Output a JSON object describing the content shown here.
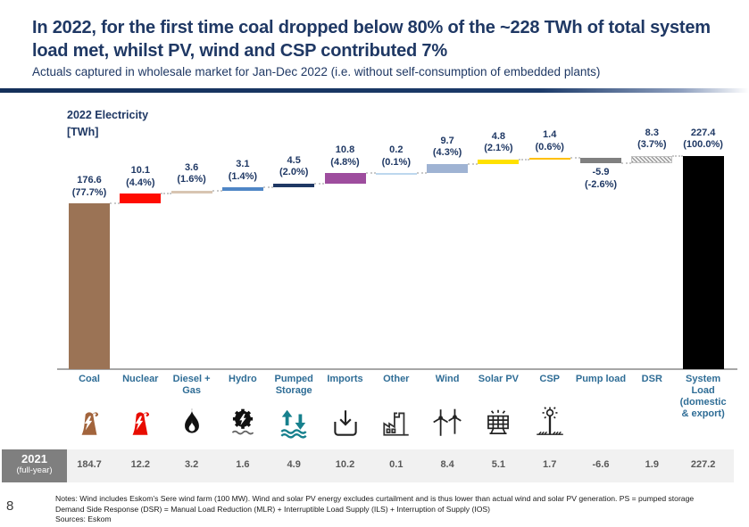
{
  "page": {
    "title": "In 2022, for the first time coal dropped below 80% of the ~228 TWh of total system load met, whilst PV, wind and CSP contributed 7%",
    "subtitle": "Actuals captured in wholesale market for Jan-Dec 2022 (i.e. without self-consumption of embedded plants)",
    "page_number": "8",
    "notes": [
      "Notes: Wind includes Eskom’s Sere wind farm (100 MW). Wind and solar PV energy excludes curtailment and is thus lower than actual wind and solar PV generation. PS = pumped storage",
      "Demand Side Response (DSR) = Manual Load Reduction (MLR) + Interruptible Load Supply (ILS) + Interruption of Supply (IOS)",
      "Sources: Eskom"
    ]
  },
  "colors": {
    "title_navy": "#1f3864",
    "category_label_blue": "#2f6d96",
    "divider_navy": "#1b3a69",
    "prior_year_box_gray": "#7f7f7f",
    "prior_year_band_gray": "#f1f1f1"
  },
  "chart_data": {
    "type": "waterfall",
    "title": "2022 Electricity",
    "unit_label": "[TWh]",
    "total": 227.4,
    "legend_position": "none",
    "grid": false,
    "categories": [
      "Coal",
      "Nuclear",
      "Diesel + Gas",
      "Hydro",
      "Pumped Storage",
      "Imports",
      "Other",
      "Wind",
      "Solar PV",
      "CSP",
      "Pump load",
      "DSR",
      "System Load (domestic & export)"
    ],
    "columns": [
      {
        "label": "Coal",
        "value": 176.6,
        "value_label": "176.6",
        "pct_label": "(77.7%)",
        "kind": "delta",
        "color": "#9b7355",
        "icon": "coal-plant-icon",
        "icon_color": "#a2643c",
        "y2021": "184.7"
      },
      {
        "label": "Nuclear",
        "value": 10.1,
        "value_label": "10.1",
        "pct_label": "(4.4%)",
        "kind": "delta",
        "color": "#ff0b00",
        "icon": "nuclear-plant-icon",
        "icon_color": "#e80c00",
        "y2021": "12.2"
      },
      {
        "label": "Diesel + Gas",
        "value": 3.6,
        "value_label": "3.6",
        "pct_label": "(1.6%)",
        "kind": "delta",
        "color": "#d8c5b2",
        "icon": "flame-icon",
        "icon_color": "#111111",
        "y2021": "3.2"
      },
      {
        "label": "Hydro",
        "value": 3.1,
        "value_label": "3.1",
        "pct_label": "(1.4%)",
        "kind": "delta",
        "color": "#4f86c6",
        "icon": "hydro-gear-icon",
        "icon_color": "#111111",
        "y2021": "1.6"
      },
      {
        "label": "Pumped Storage",
        "value": 4.5,
        "value_label": "4.5",
        "pct_label": "(2.0%)",
        "kind": "delta",
        "color": "#1f3864",
        "icon": "pumped-storage-icon",
        "icon_color": "#17808d",
        "y2021": "4.9"
      },
      {
        "label": "Imports",
        "value": 10.8,
        "value_label": "10.8",
        "pct_label": "(4.8%)",
        "kind": "delta",
        "color": "#9e4d9e",
        "icon": "imports-icon",
        "icon_color": "#222222",
        "y2021": "10.2"
      },
      {
        "label": "Other",
        "value": 0.2,
        "value_label": "0.2",
        "pct_label": "(0.1%)",
        "kind": "delta",
        "color": "#bdd7ee",
        "icon": "factory-icon",
        "icon_color": "#333333",
        "y2021": "0.1"
      },
      {
        "label": "Wind",
        "value": 9.7,
        "value_label": "9.7",
        "pct_label": "(4.3%)",
        "kind": "delta",
        "color": "#9fb3d3",
        "icon": "wind-turbine-icon",
        "icon_color": "#222222",
        "y2021": "8.4"
      },
      {
        "label": "Solar PV",
        "value": 4.8,
        "value_label": "4.8",
        "pct_label": "(2.1%)",
        "kind": "delta",
        "color": "#ffe100",
        "icon": "solar-panel-icon",
        "icon_color": "#222222",
        "y2021": "5.1"
      },
      {
        "label": "CSP",
        "value": 1.4,
        "value_label": "1.4",
        "pct_label": "(0.6%)",
        "kind": "delta",
        "color": "#ffc000",
        "icon": "csp-tower-icon",
        "icon_color": "#222222",
        "y2021": "1.7"
      },
      {
        "label": "Pump load",
        "value": -5.9,
        "value_label": "-5.9",
        "pct_label": "(-2.6%)",
        "kind": "delta",
        "color": "#808080",
        "icon": null,
        "icon_color": null,
        "y2021": "-6.6"
      },
      {
        "label": "DSR",
        "value": 8.3,
        "value_label": "8.3",
        "pct_label": "(3.7%)",
        "kind": "delta",
        "color": "hatch",
        "icon": null,
        "icon_color": null,
        "y2021": "1.9"
      },
      {
        "label": "System Load (domestic & export)",
        "value": 227.4,
        "value_label": "227.4",
        "pct_label": "(100.0%)",
        "kind": "total",
        "color": "#000000",
        "icon": null,
        "icon_color": null,
        "y2021": "227.2"
      }
    ],
    "prior_year": {
      "label": "2021",
      "sublabel": "(full-year)"
    }
  }
}
